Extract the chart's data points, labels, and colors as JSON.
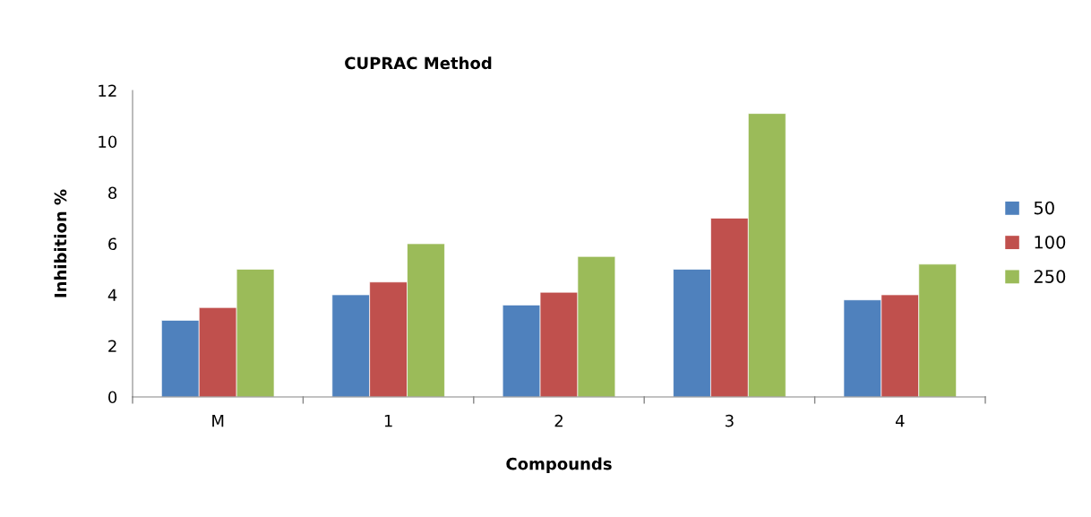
{
  "chart_data": {
    "type": "bar",
    "title": "CUPRAC Method",
    "xlabel": "Compounds",
    "ylabel": "Inhibition %",
    "categories": [
      "M",
      "1",
      "2",
      "3",
      "4"
    ],
    "series": [
      {
        "name": "50",
        "color": "#4f81bd",
        "values": [
          3.0,
          4.0,
          3.6,
          5.0,
          3.8
        ]
      },
      {
        "name": "100",
        "color": "#c0504d",
        "values": [
          3.5,
          4.5,
          4.1,
          7.0,
          4.0
        ]
      },
      {
        "name": "250",
        "color": "#9bbb59",
        "values": [
          5.0,
          6.0,
          5.5,
          11.1,
          5.2
        ]
      }
    ],
    "ylim": [
      0,
      12
    ],
    "yticks": [
      0,
      2,
      4,
      6,
      8,
      10,
      12
    ],
    "grid": false,
    "legend": "right"
  }
}
